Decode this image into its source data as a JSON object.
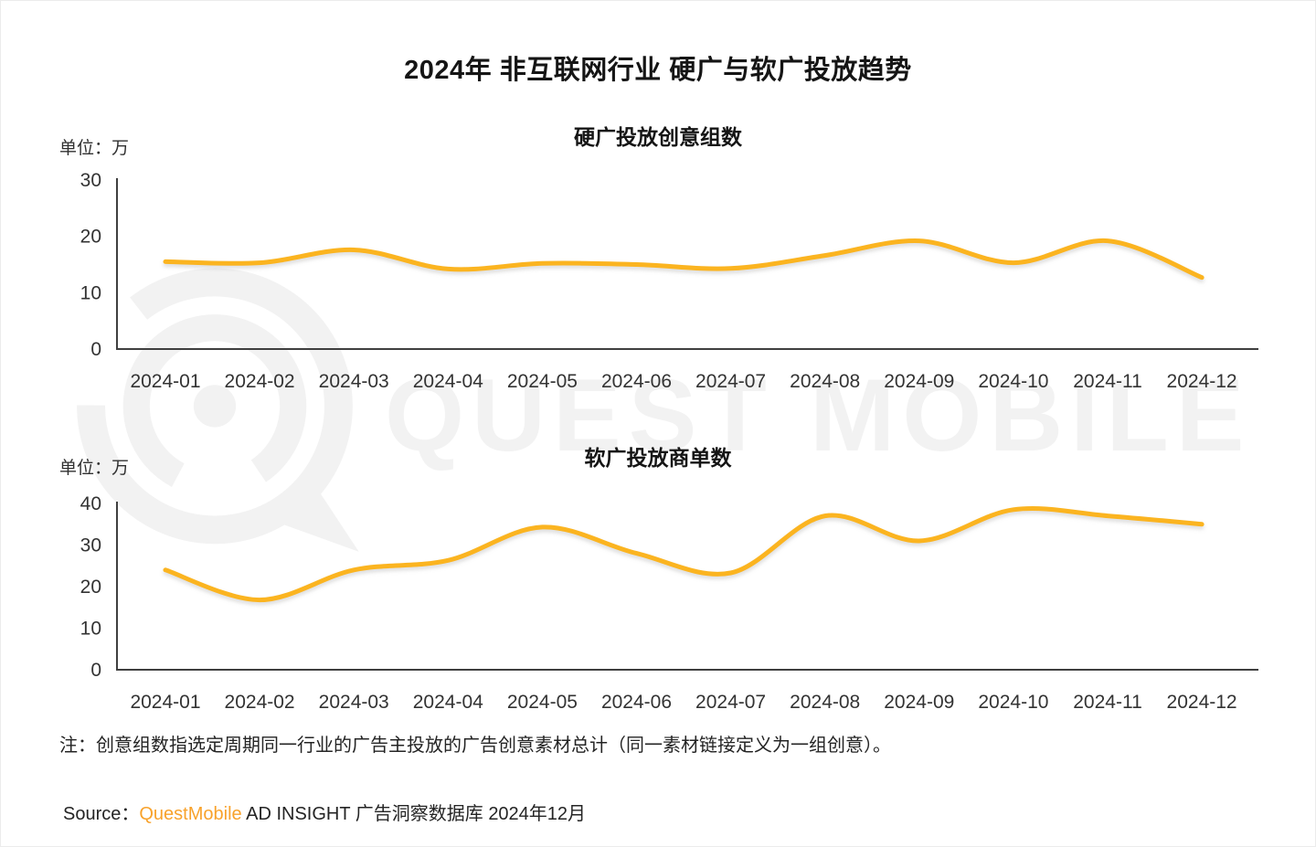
{
  "title": "2024年 非互联网行业 硬广与软广投放趋势",
  "watermark": {
    "text": "QUEST MOBILE",
    "logo": "questmobile-logo"
  },
  "note": "注：创意组数指选定周期同一行业的广告主投放的广告创意素材总计（同一素材链接定义为一组创意）。",
  "source": {
    "prefix": "Source：",
    "brand": "QuestMobile",
    "suffix": " AD INSIGHT 广告洞察数据库 2024年12月"
  },
  "colors": {
    "line": "#FBB420",
    "brand": "#F8A22B",
    "watermark": "#F2F2F2",
    "axis": "#3F3F3F"
  },
  "chart_data": [
    {
      "type": "line",
      "title": "硬广投放创意组数",
      "unit_label": "单位：万",
      "categories": [
        "2024-01",
        "2024-02",
        "2024-03",
        "2024-04",
        "2024-05",
        "2024-06",
        "2024-07",
        "2024-08",
        "2024-09",
        "2024-10",
        "2024-11",
        "2024-12"
      ],
      "values": [
        15.5,
        15.3,
        17.6,
        14.2,
        15.2,
        15.0,
        14.3,
        16.6,
        19.2,
        15.3,
        19.2,
        12.7
      ],
      "ylim": [
        0,
        30
      ],
      "yticks": [
        0,
        10,
        20,
        30
      ],
      "line_color": "#FBB420",
      "grid": false,
      "legend_position": "none"
    },
    {
      "type": "line",
      "title": "软广投放商单数",
      "unit_label": "单位：万",
      "categories": [
        "2024-01",
        "2024-02",
        "2024-03",
        "2024-04",
        "2024-05",
        "2024-06",
        "2024-07",
        "2024-08",
        "2024-09",
        "2024-10",
        "2024-11",
        "2024-12"
      ],
      "values": [
        24.0,
        16.8,
        24.0,
        26.3,
        34.3,
        28.0,
        23.3,
        37.0,
        31.0,
        38.5,
        37.0,
        35.0
      ],
      "ylim": [
        0,
        40
      ],
      "yticks": [
        0,
        10,
        20,
        30,
        40
      ],
      "line_color": "#FBB420",
      "grid": false,
      "legend_position": "none"
    }
  ]
}
